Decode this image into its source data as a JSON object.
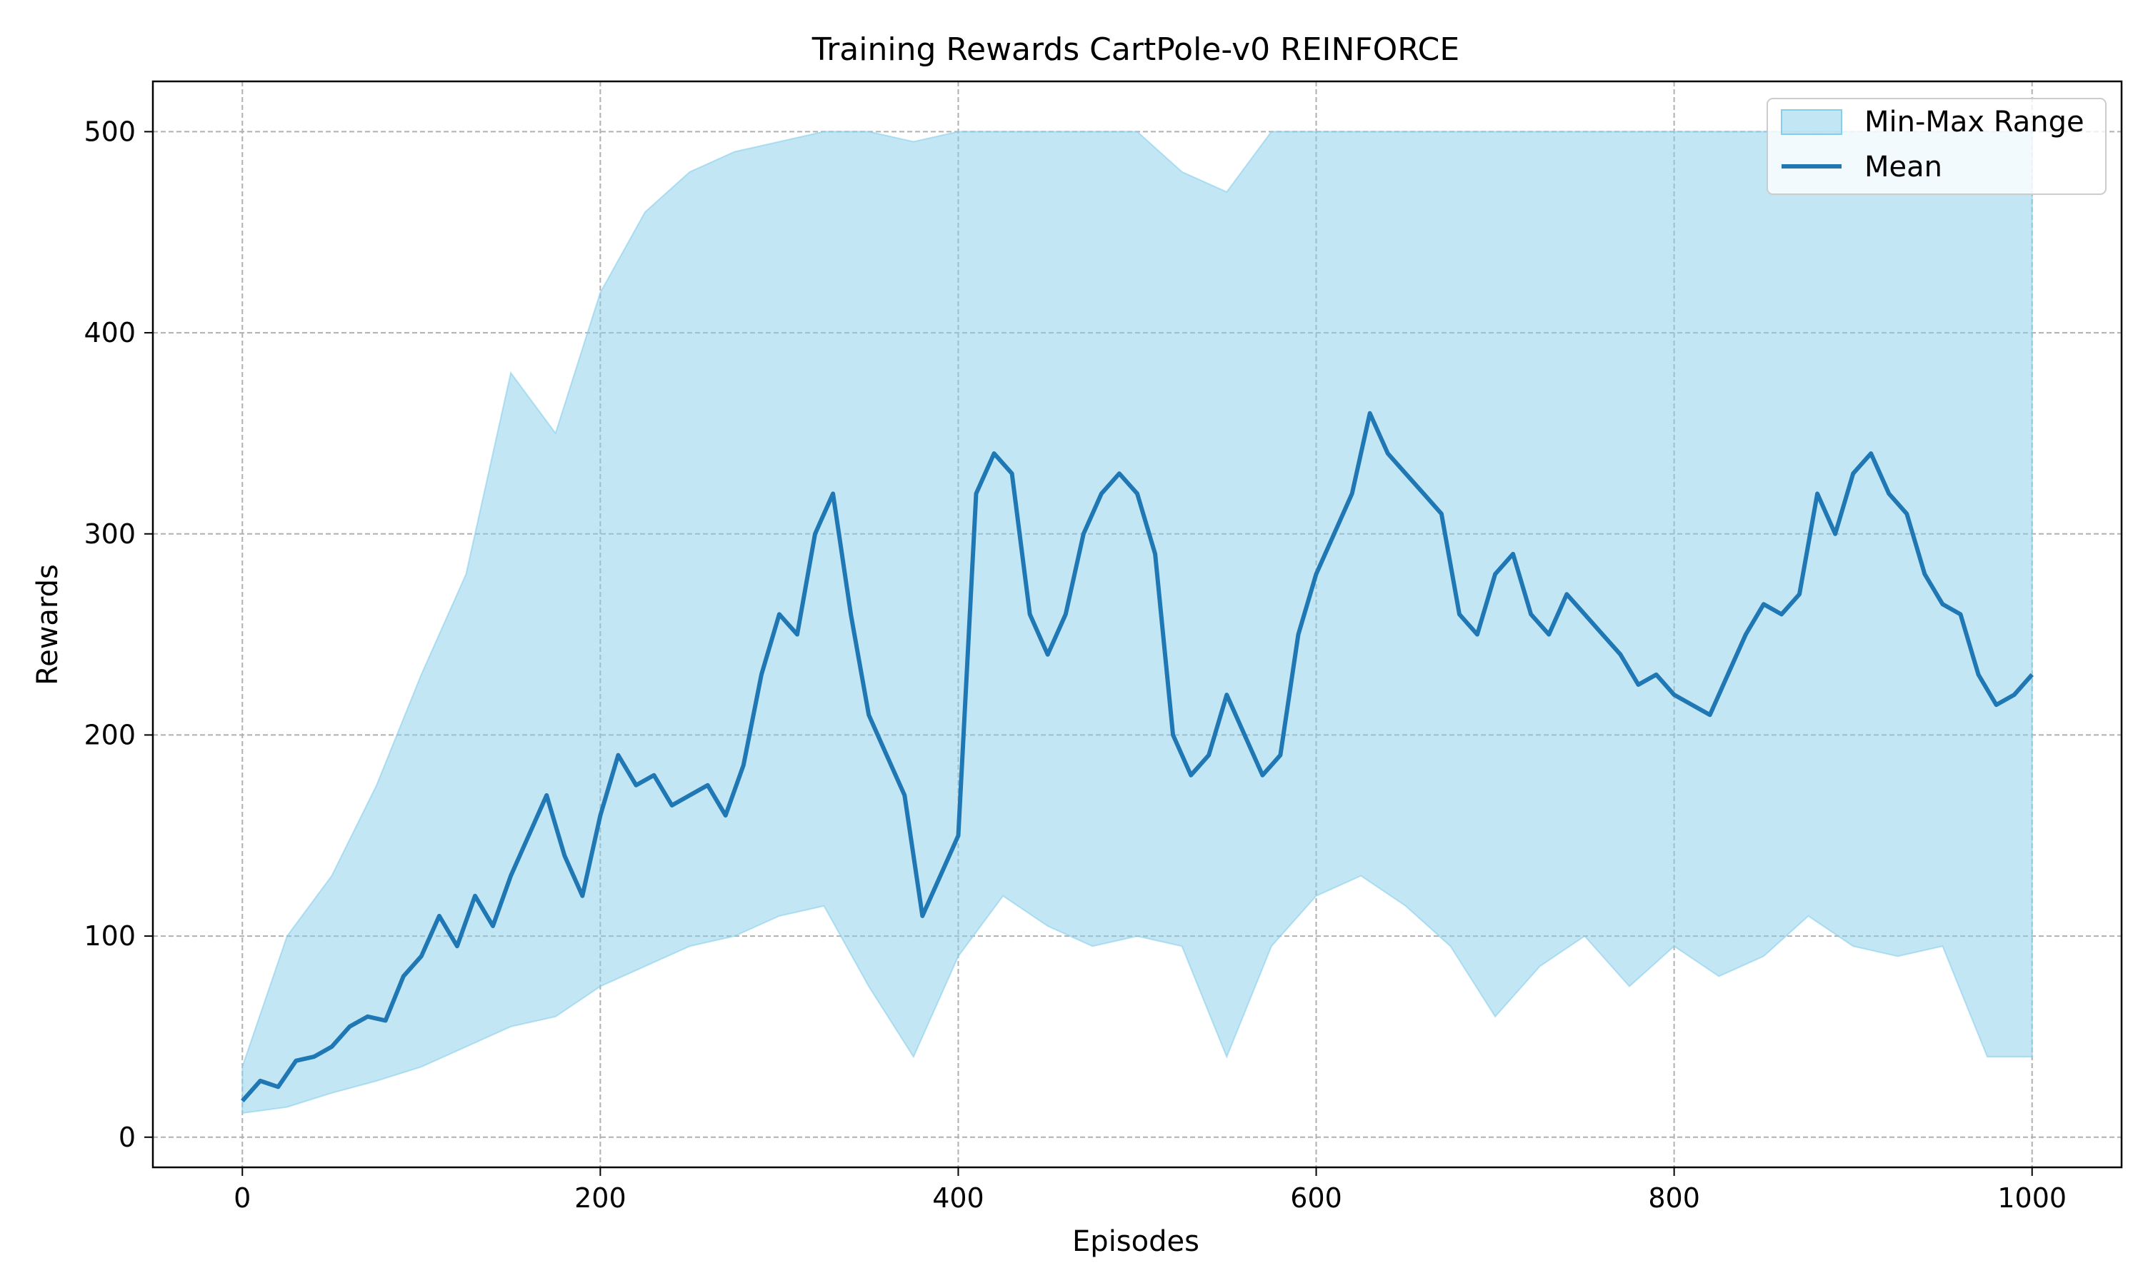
{
  "chart_data": {
    "type": "area",
    "title": "Training Rewards CartPole-v0 REINFORCE",
    "xlabel": "Episodes",
    "ylabel": "Rewards",
    "xlim": [
      -50,
      1050
    ],
    "ylim": [
      -15,
      525
    ],
    "xticks": [
      0,
      200,
      400,
      600,
      800,
      1000
    ],
    "yticks": [
      0,
      100,
      200,
      300,
      400,
      500
    ],
    "grid": true,
    "legend_position": "top-right",
    "colors": {
      "band": "#87ceeb",
      "mean": "#1f77b4"
    },
    "series": [
      {
        "name": "Min-Max Range",
        "kind": "band",
        "x": [
          0,
          25,
          50,
          75,
          100,
          125,
          150,
          175,
          200,
          225,
          250,
          275,
          300,
          325,
          350,
          375,
          400,
          425,
          450,
          475,
          500,
          525,
          550,
          575,
          600,
          625,
          650,
          675,
          700,
          725,
          750,
          775,
          800,
          825,
          850,
          875,
          900,
          925,
          950,
          975,
          1000
        ],
        "min": [
          12,
          15,
          22,
          28,
          35,
          45,
          55,
          60,
          75,
          85,
          95,
          100,
          110,
          115,
          75,
          40,
          90,
          120,
          105,
          95,
          100,
          95,
          40,
          95,
          120,
          130,
          115,
          95,
          60,
          85,
          100,
          75,
          95,
          80,
          90,
          110,
          95,
          90,
          95,
          40,
          40
        ],
        "max": [
          35,
          100,
          130,
          175,
          230,
          280,
          380,
          350,
          420,
          460,
          480,
          490,
          495,
          500,
          500,
          495,
          500,
          500,
          500,
          500,
          500,
          480,
          470,
          500,
          500,
          500,
          500,
          500,
          500,
          500,
          500,
          500,
          500,
          500,
          500,
          500,
          500,
          500,
          500,
          500,
          500
        ]
      },
      {
        "name": "Mean",
        "kind": "line",
        "x": [
          0,
          10,
          20,
          30,
          40,
          50,
          60,
          70,
          80,
          90,
          100,
          110,
          120,
          130,
          140,
          150,
          160,
          170,
          180,
          190,
          200,
          210,
          220,
          230,
          240,
          250,
          260,
          270,
          280,
          290,
          300,
          310,
          320,
          330,
          340,
          350,
          360,
          370,
          380,
          390,
          400,
          410,
          420,
          430,
          440,
          450,
          460,
          470,
          480,
          490,
          500,
          510,
          520,
          530,
          540,
          550,
          560,
          570,
          580,
          590,
          600,
          610,
          620,
          630,
          640,
          650,
          660,
          670,
          680,
          690,
          700,
          710,
          720,
          730,
          740,
          750,
          760,
          770,
          780,
          790,
          800,
          810,
          820,
          830,
          840,
          850,
          860,
          870,
          880,
          890,
          900,
          910,
          920,
          930,
          940,
          950,
          960,
          970,
          980,
          990,
          1000
        ],
        "y": [
          18,
          28,
          25,
          38,
          40,
          45,
          55,
          60,
          58,
          80,
          90,
          110,
          95,
          120,
          105,
          130,
          150,
          170,
          140,
          120,
          160,
          190,
          175,
          180,
          165,
          170,
          175,
          160,
          185,
          230,
          260,
          250,
          300,
          320,
          260,
          210,
          190,
          170,
          110,
          130,
          150,
          320,
          340,
          330,
          260,
          240,
          260,
          300,
          320,
          330,
          320,
          290,
          200,
          180,
          190,
          220,
          200,
          180,
          190,
          250,
          280,
          300,
          320,
          360,
          340,
          330,
          320,
          310,
          260,
          250,
          280,
          290,
          260,
          250,
          270,
          260,
          250,
          240,
          225,
          230,
          220,
          215,
          210,
          230,
          250,
          265,
          260,
          270,
          320,
          300,
          330,
          340,
          320,
          310,
          280,
          265,
          260,
          230,
          215,
          220,
          230
        ]
      }
    ]
  }
}
